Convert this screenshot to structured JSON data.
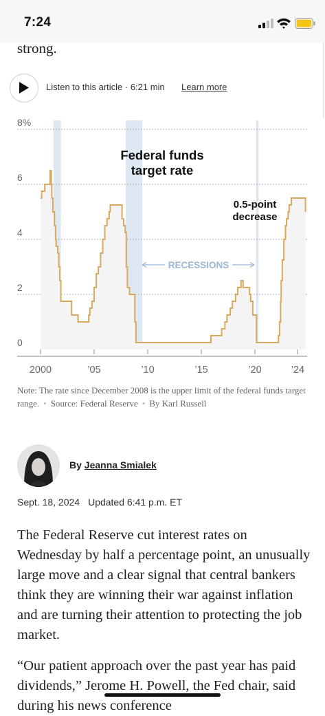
{
  "status_bar": {
    "time": "7:24"
  },
  "article_fragment": "strong.",
  "audio": {
    "listen_label": "Listen to this article · 6:21 min",
    "learn_more": "Learn more"
  },
  "chart_data": {
    "type": "line",
    "title": "Federal funds\ntarget rate",
    "title_lines": [
      "Federal funds",
      "target rate"
    ],
    "annotation_lines": [
      "0.5-point",
      "decrease"
    ],
    "recessions_label": "RECESSIONS",
    "x_tick_labels": [
      "2000",
      "’05",
      "’10",
      "’15",
      "’20",
      "’24"
    ],
    "x_ticks": [
      2000,
      2005,
      2010,
      2015,
      2020,
      2024
    ],
    "y_tick_labels": [
      "8%",
      "6",
      "4",
      "2",
      "0"
    ],
    "y_ticks": [
      8,
      6,
      4,
      2,
      0
    ],
    "xlim": [
      2000,
      2024.7
    ],
    "ylim": [
      0,
      8
    ],
    "grid": true,
    "recessions": [
      [
        2001.2,
        2001.9
      ],
      [
        2007.95,
        2009.5
      ],
      [
        2020.1,
        2020.35
      ]
    ],
    "series": [
      {
        "x": [
          2000.0,
          2000.1,
          2000.4,
          2000.9,
          2001.0,
          2001.05,
          2001.15,
          2001.3,
          2001.4,
          2001.45,
          2001.6,
          2001.7,
          2001.8,
          2001.9,
          2002.9,
          2003.5,
          2004.5,
          2004.6,
          2004.8,
          2005.0,
          2005.2,
          2005.4,
          2005.6,
          2005.8,
          2006.0,
          2006.2,
          2006.4,
          2006.5,
          2007.6,
          2007.75,
          2007.9,
          2008.0,
          2008.1,
          2008.3,
          2008.8,
          2008.9,
          2009.0,
          2015.9,
          2016.9,
          2017.2,
          2017.4,
          2017.7,
          2017.9,
          2018.2,
          2018.4,
          2018.7,
          2018.9,
          2019.5,
          2019.6,
          2019.8,
          2020.15,
          2020.2,
          2022.2,
          2022.3,
          2022.4,
          2022.45,
          2022.55,
          2022.7,
          2022.85,
          2022.95,
          2023.1,
          2023.2,
          2023.4,
          2023.55,
          2024.7,
          2024.72
        ],
        "y": [
          5.5,
          5.75,
          6.0,
          6.5,
          6.0,
          5.5,
          5.0,
          4.5,
          4.0,
          3.75,
          3.5,
          3.0,
          2.5,
          1.75,
          1.25,
          1.0,
          1.25,
          1.5,
          1.75,
          2.25,
          2.75,
          3.0,
          3.5,
          4.0,
          4.5,
          4.75,
          5.0,
          5.25,
          4.75,
          4.5,
          4.25,
          3.0,
          2.25,
          2.0,
          1.0,
          0.25,
          0.25,
          0.5,
          0.75,
          1.0,
          1.25,
          1.5,
          1.75,
          2.0,
          2.25,
          2.5,
          2.25,
          2.0,
          1.75,
          1.25,
          0.25,
          0.25,
          0.5,
          1.0,
          1.75,
          2.5,
          3.25,
          4.0,
          4.5,
          4.75,
          5.0,
          5.25,
          5.5,
          5.5,
          5.5,
          5.0
        ]
      }
    ]
  },
  "chart_note": {
    "note": "Note: The rate since December 2008 is the upper limit of the federal funds target range.",
    "source": "Source: Federal Reserve",
    "credit": "By Karl Russell"
  },
  "byline": {
    "prefix": "By",
    "author": "Jeanna Smialek"
  },
  "dateline": {
    "date": "Sept. 18, 2024",
    "updated": "Updated 6:41 p.m. ET"
  },
  "paragraphs": [
    "The Federal Reserve cut interest rates on Wednesday by half a percentage point, an unusually large move and a clear signal that central bankers think they are winning their war against inflation and are turning their attention to protecting the job market.",
    "“Our patient approach over the past year has paid dividends,” Jerome H. Powell, the Fed chair, said during his news conference"
  ],
  "colors": {
    "line": "#d8a85d",
    "recession": "#dde8f3",
    "recessions_label": "#9ab6d6",
    "area": "#f4f4f4"
  }
}
